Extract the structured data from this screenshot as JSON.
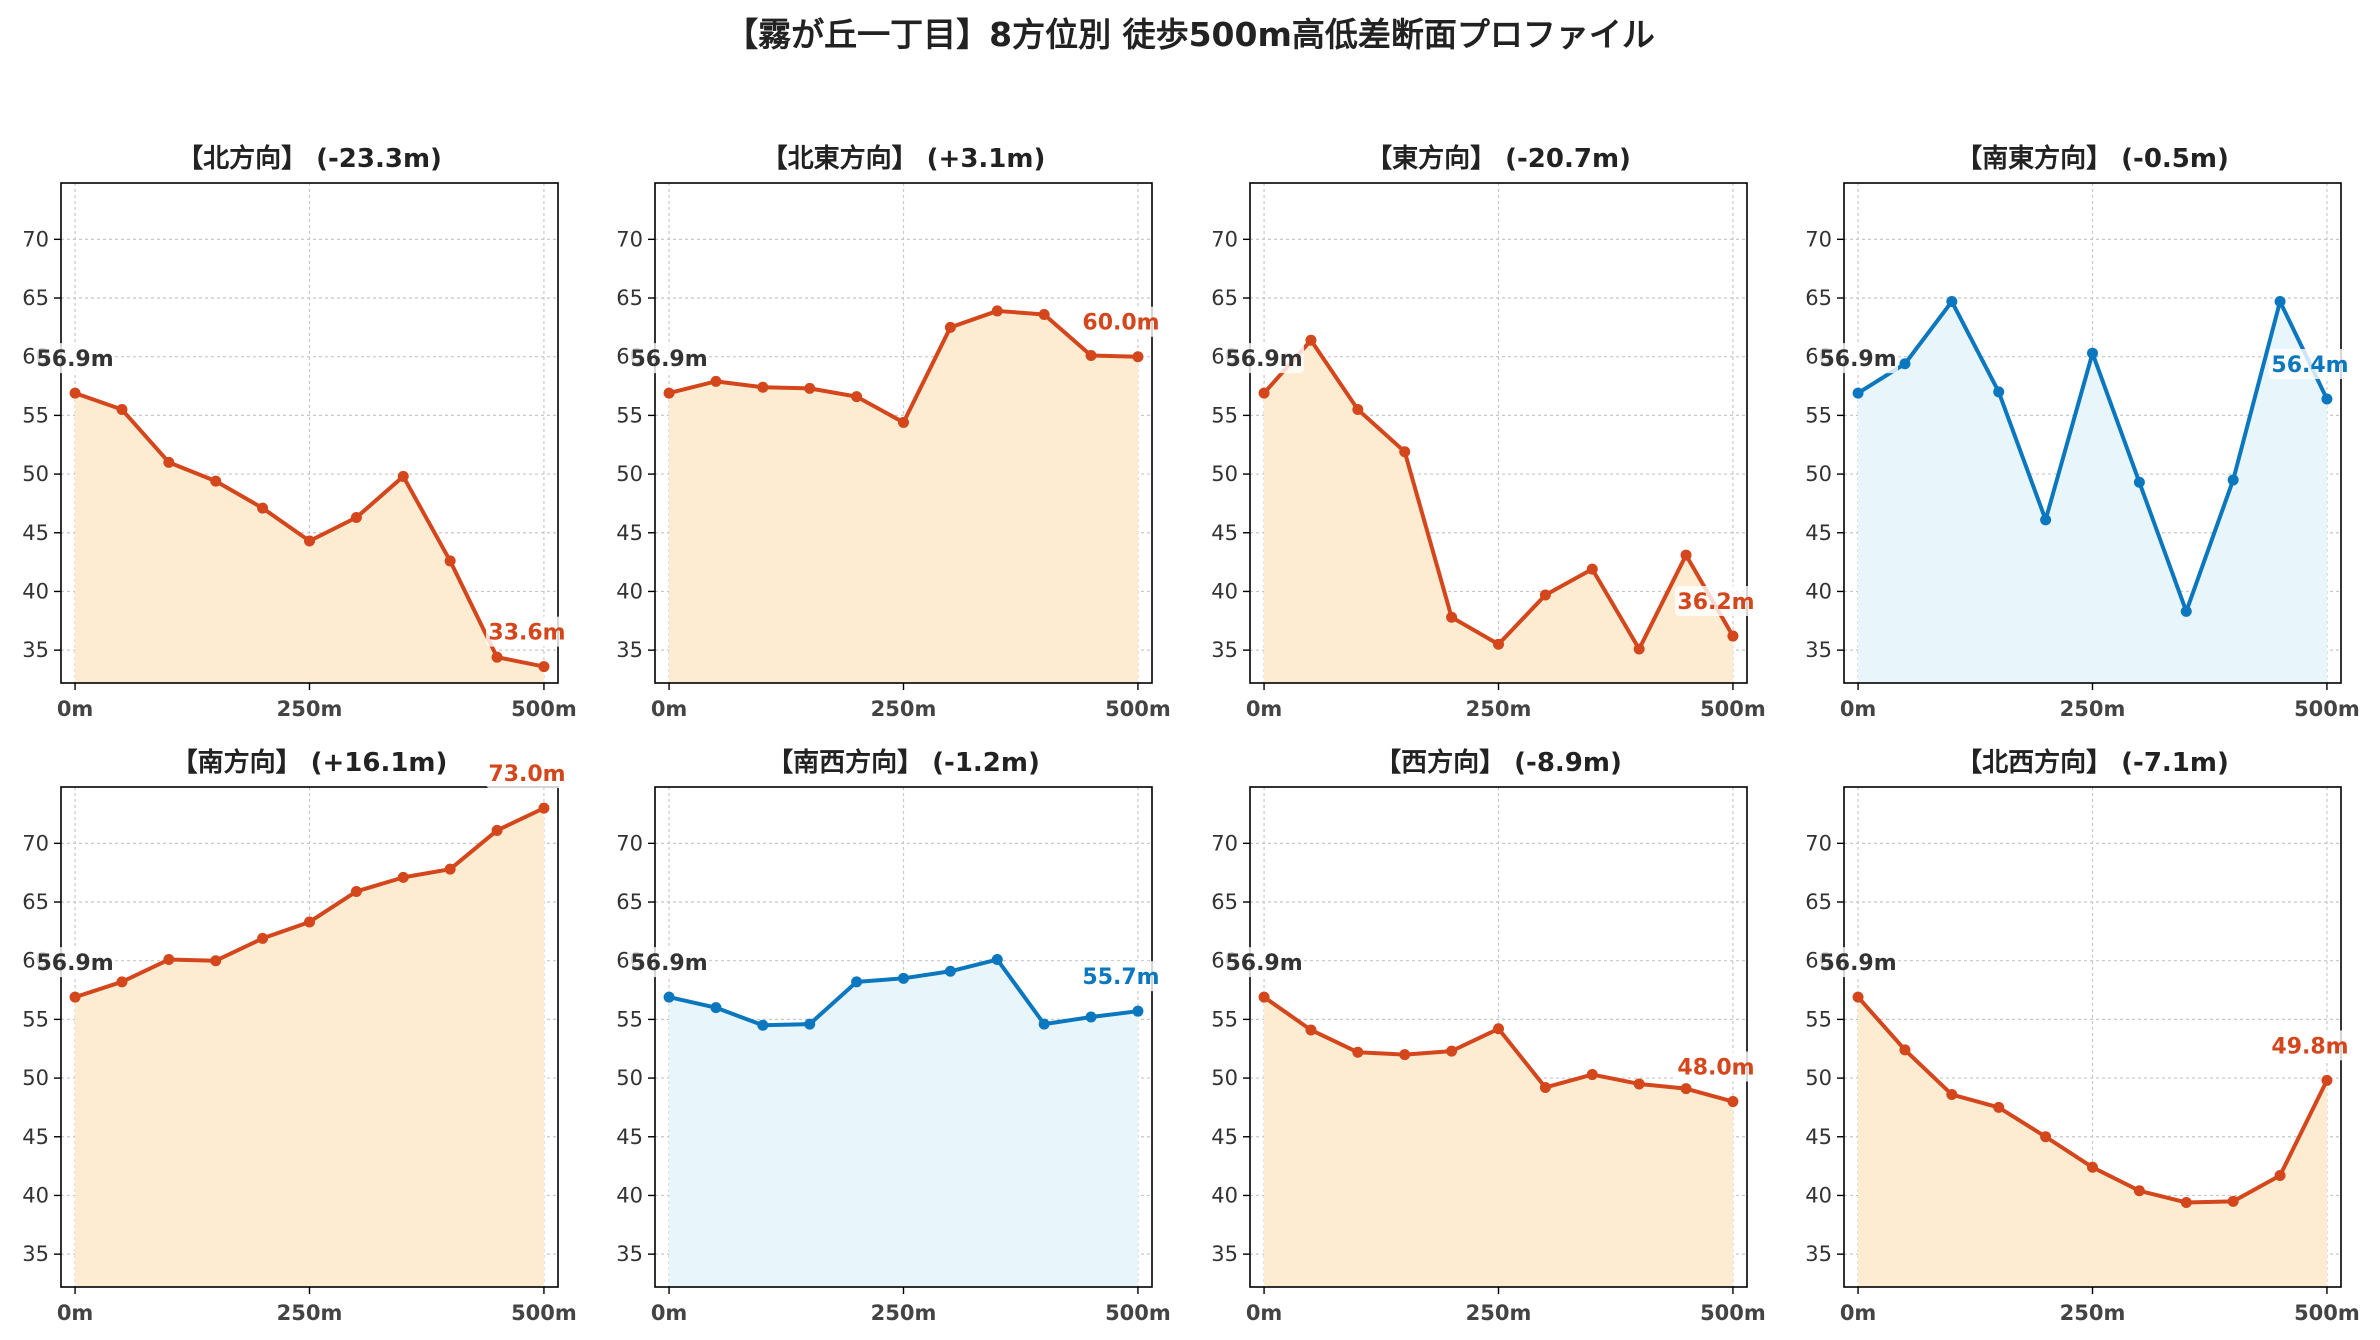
{
  "title": "【霧が丘一丁目】8方位別 徒歩500m高低差断面プロファイル",
  "colors": {
    "down": "#d4461c",
    "down_fill": "#fdecd2",
    "up": "#0b77bf",
    "up_fill": "#e8f5fb",
    "start_label": "#333333"
  },
  "chart_data": [
    {
      "type": "line",
      "title": "【北方向】 (-23.3m)",
      "x": [
        0,
        50,
        100,
        150,
        200,
        250,
        300,
        350,
        400,
        450,
        500
      ],
      "values": [
        56.9,
        55.5,
        51.0,
        49.4,
        47.1,
        44.3,
        46.3,
        49.8,
        42.6,
        34.4,
        33.6
      ],
      "start_label": "56.9m",
      "end_label": "33.6m",
      "style": "down",
      "xticks": [
        "0m",
        "250m",
        "500m"
      ],
      "yticks": [
        35,
        40,
        45,
        50,
        55,
        60,
        65,
        70
      ],
      "ylim": [
        32.2,
        74.8
      ],
      "xlim": [
        -15,
        515
      ],
      "grid": true
    },
    {
      "type": "line",
      "title": "【北東方向】 (+3.1m)",
      "x": [
        0,
        50,
        100,
        150,
        200,
        250,
        300,
        350,
        400,
        450,
        500
      ],
      "values": [
        56.9,
        57.9,
        57.4,
        57.3,
        56.6,
        54.4,
        62.5,
        63.9,
        63.6,
        60.1,
        60.0
      ],
      "start_label": "56.9m",
      "end_label": "60.0m",
      "style": "down",
      "xticks": [
        "0m",
        "250m",
        "500m"
      ],
      "yticks": [
        35,
        40,
        45,
        50,
        55,
        60,
        65,
        70
      ],
      "ylim": [
        32.2,
        74.8
      ],
      "xlim": [
        -15,
        515
      ],
      "grid": true
    },
    {
      "type": "line",
      "title": "【東方向】 (-20.7m)",
      "x": [
        0,
        50,
        100,
        150,
        200,
        250,
        300,
        350,
        400,
        450,
        500
      ],
      "values": [
        56.9,
        61.4,
        55.5,
        51.9,
        37.8,
        35.5,
        39.7,
        41.9,
        35.1,
        43.1,
        36.2
      ],
      "start_label": "56.9m",
      "end_label": "36.2m",
      "style": "down",
      "xticks": [
        "0m",
        "250m",
        "500m"
      ],
      "yticks": [
        35,
        40,
        45,
        50,
        55,
        60,
        65,
        70
      ],
      "ylim": [
        32.2,
        74.8
      ],
      "xlim": [
        -15,
        515
      ],
      "grid": true
    },
    {
      "type": "line",
      "title": "【南東方向】 (-0.5m)",
      "x": [
        0,
        50,
        100,
        150,
        200,
        250,
        300,
        350,
        400,
        450,
        500
      ],
      "values": [
        56.9,
        59.4,
        64.7,
        57.0,
        46.1,
        60.3,
        49.3,
        38.3,
        49.5,
        64.7,
        56.4
      ],
      "start_label": "56.9m",
      "end_label": "56.4m",
      "style": "up",
      "xticks": [
        "0m",
        "250m",
        "500m"
      ],
      "yticks": [
        35,
        40,
        45,
        50,
        55,
        60,
        65,
        70
      ],
      "ylim": [
        32.2,
        74.8
      ],
      "xlim": [
        -15,
        515
      ],
      "grid": true
    },
    {
      "type": "line",
      "title": "【南方向】 (+16.1m)",
      "x": [
        0,
        50,
        100,
        150,
        200,
        250,
        300,
        350,
        400,
        450,
        500
      ],
      "values": [
        56.9,
        58.2,
        60.1,
        60.0,
        61.9,
        63.3,
        65.9,
        67.1,
        67.8,
        71.1,
        73.0
      ],
      "start_label": "56.9m",
      "end_label": "73.0m",
      "style": "down",
      "xticks": [
        "0m",
        "250m",
        "500m"
      ],
      "yticks": [
        35,
        40,
        45,
        50,
        55,
        60,
        65,
        70
      ],
      "ylim": [
        32.2,
        74.8
      ],
      "xlim": [
        -15,
        515
      ],
      "grid": true
    },
    {
      "type": "line",
      "title": "【南西方向】 (-1.2m)",
      "x": [
        0,
        50,
        100,
        150,
        200,
        250,
        300,
        350,
        400,
        450,
        500
      ],
      "values": [
        56.9,
        56.0,
        54.5,
        54.6,
        58.2,
        58.5,
        59.1,
        60.1,
        54.6,
        55.2,
        55.7
      ],
      "start_label": "56.9m",
      "end_label": "55.7m",
      "style": "up",
      "xticks": [
        "0m",
        "250m",
        "500m"
      ],
      "yticks": [
        35,
        40,
        45,
        50,
        55,
        60,
        65,
        70
      ],
      "ylim": [
        32.2,
        74.8
      ],
      "xlim": [
        -15,
        515
      ],
      "grid": true
    },
    {
      "type": "line",
      "title": "【西方向】 (-8.9m)",
      "x": [
        0,
        50,
        100,
        150,
        200,
        250,
        300,
        350,
        400,
        450,
        500
      ],
      "values": [
        56.9,
        54.1,
        52.2,
        52.0,
        52.3,
        54.2,
        49.2,
        50.3,
        49.5,
        49.1,
        48.0
      ],
      "start_label": "56.9m",
      "end_label": "48.0m",
      "style": "down",
      "xticks": [
        "0m",
        "250m",
        "500m"
      ],
      "yticks": [
        35,
        40,
        45,
        50,
        55,
        60,
        65,
        70
      ],
      "ylim": [
        32.2,
        74.8
      ],
      "xlim": [
        -15,
        515
      ],
      "grid": true
    },
    {
      "type": "line",
      "title": "【北西方向】 (-7.1m)",
      "x": [
        0,
        50,
        100,
        150,
        200,
        250,
        300,
        350,
        400,
        450,
        500
      ],
      "values": [
        56.9,
        52.4,
        48.6,
        47.5,
        45.0,
        42.4,
        40.4,
        39.4,
        39.5,
        41.7,
        49.8
      ],
      "start_label": "56.9m",
      "end_label": "49.8m",
      "style": "down",
      "xticks": [
        "0m",
        "250m",
        "500m"
      ],
      "yticks": [
        35,
        40,
        45,
        50,
        55,
        60,
        65,
        70
      ],
      "ylim": [
        32.2,
        74.8
      ],
      "xlim": [
        -15,
        515
      ],
      "grid": true
    }
  ]
}
